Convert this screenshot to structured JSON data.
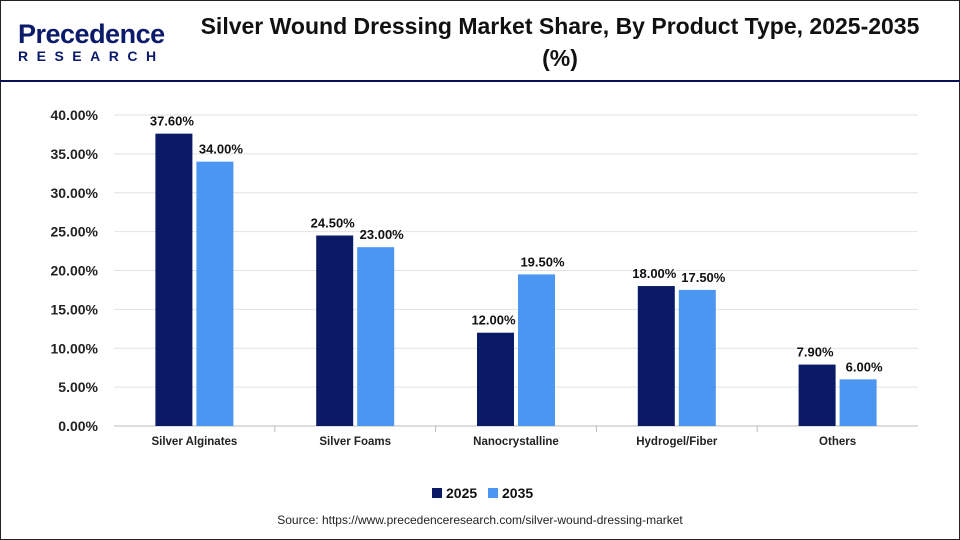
{
  "header": {
    "logo_line1": "Precedence",
    "logo_line2": "RESEARCH",
    "title": "Silver Wound Dressing Market Share, By Product Type, 2025-2035 (%)"
  },
  "chart_data": {
    "type": "bar",
    "title": "Silver Wound Dressing Market Share, By Product Type, 2025-2035 (%)",
    "categories": [
      "Silver Alginates",
      "Silver Foams",
      "Nanocrystalline",
      "Hydrogel/Fiber",
      "Others"
    ],
    "series": [
      {
        "name": "2025",
        "color": "#0a1a66",
        "values": [
          37.6,
          24.5,
          12.0,
          18.0,
          7.9
        ],
        "labels": [
          "37.60%",
          "24.50%",
          "12.00%",
          "18.00%",
          "7.90%"
        ]
      },
      {
        "name": "2035",
        "color": "#4a96f0",
        "values": [
          34.0,
          23.0,
          19.5,
          17.5,
          6.0
        ],
        "labels": [
          "34.00%",
          "23.00%",
          "19.50%",
          "17.50%",
          "6.00%"
        ]
      }
    ],
    "yticks": [
      "0.00%",
      "5.00%",
      "10.00%",
      "15.00%",
      "20.00%",
      "25.00%",
      "30.00%",
      "35.00%",
      "40.00%"
    ],
    "ylim": [
      0,
      40
    ],
    "grid": true,
    "legend": "bottom"
  },
  "source": "Source: https://www.precedenceresearch.com/silver-wound-dressing-market"
}
